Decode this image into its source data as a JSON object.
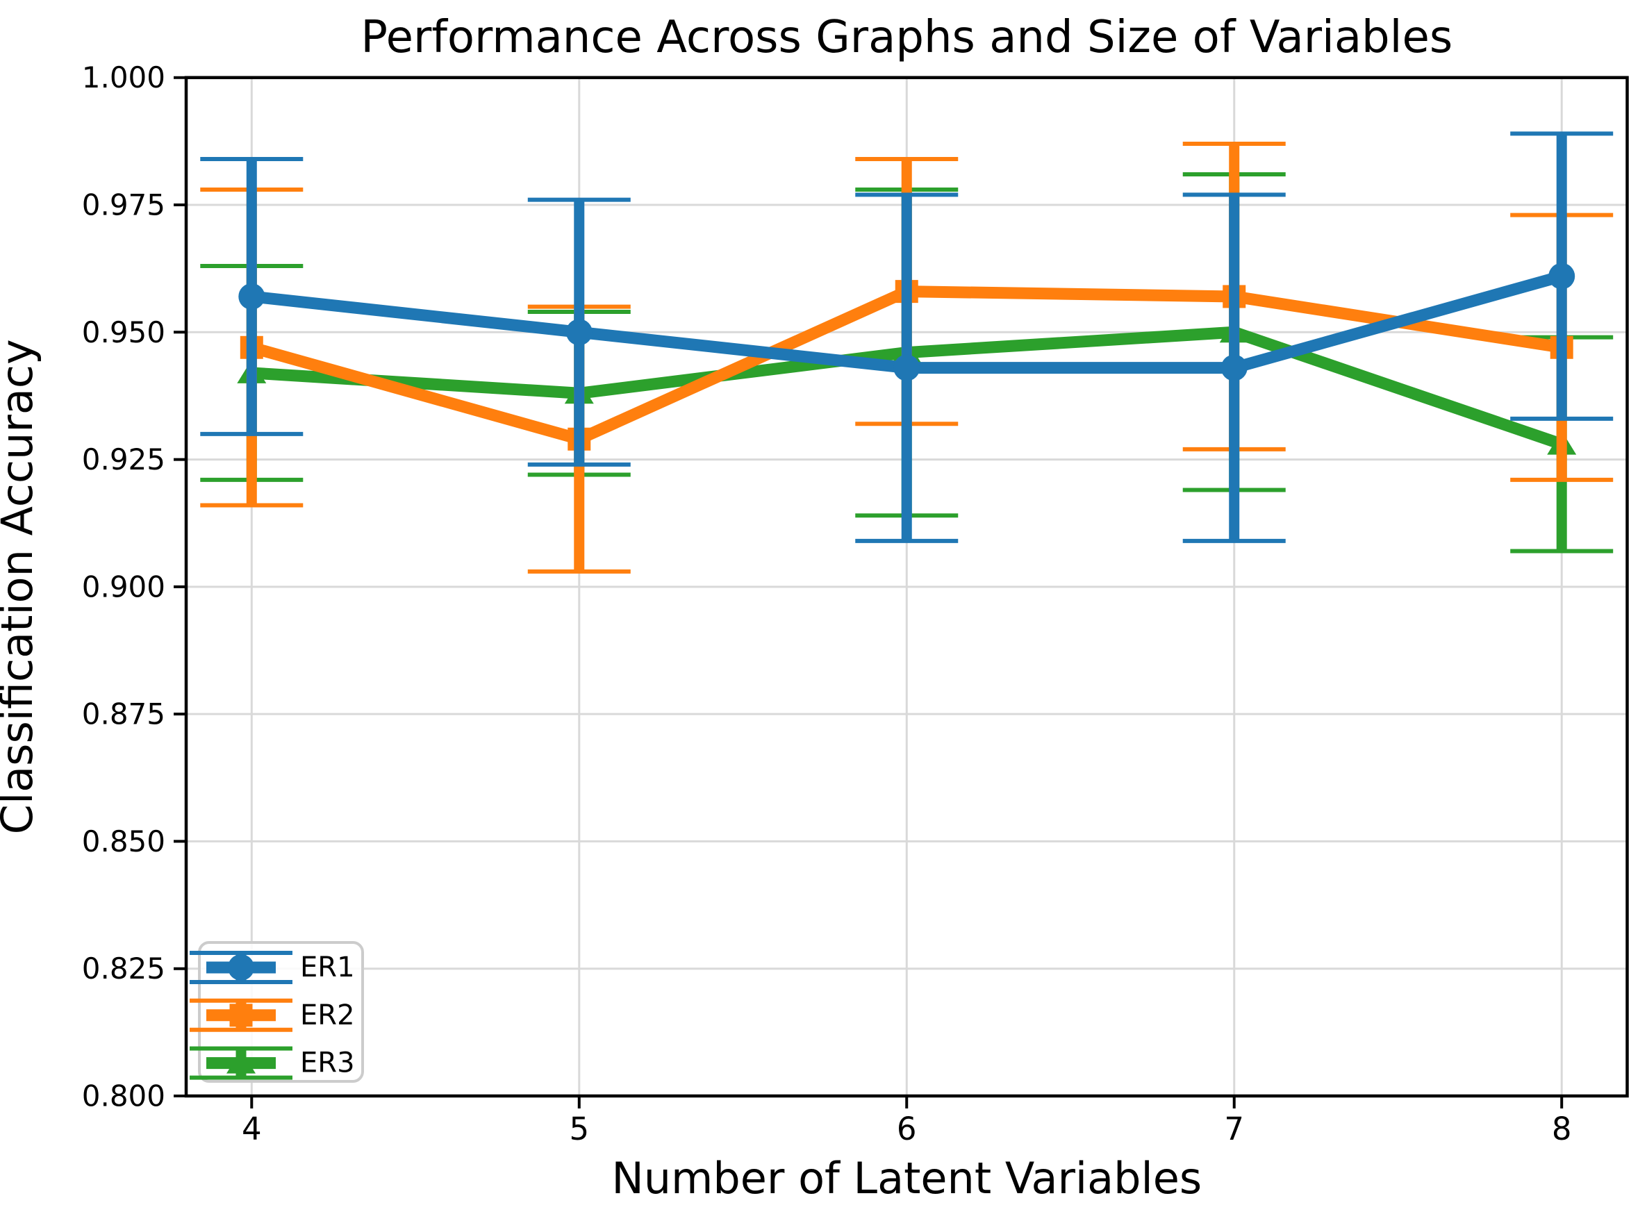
{
  "chart_data": {
    "type": "line",
    "title": "Performance Across Graphs and Size of Variables",
    "xlabel": "Number of Latent Variables",
    "ylabel": "Classification Accuracy",
    "x": [
      4,
      5,
      6,
      7,
      8
    ],
    "xticks": [
      4,
      5,
      6,
      7,
      8
    ],
    "yticks": [
      0.8,
      0.825,
      0.85,
      0.875,
      0.9,
      0.925,
      0.95,
      0.975,
      1.0
    ],
    "xlim": [
      3.8,
      8.2
    ],
    "ylim": [
      0.8,
      1.0
    ],
    "grid": true,
    "legend_position": "lower-left",
    "series": [
      {
        "name": "ER1",
        "color": "#1f77b4",
        "marker": "circle",
        "values": [
          0.957,
          0.95,
          0.943,
          0.943,
          0.961
        ],
        "yerr": [
          0.027,
          0.026,
          0.034,
          0.034,
          0.028
        ]
      },
      {
        "name": "ER2",
        "color": "#ff7f0e",
        "marker": "square",
        "values": [
          0.947,
          0.929,
          0.958,
          0.957,
          0.947
        ],
        "yerr": [
          0.031,
          0.026,
          0.026,
          0.03,
          0.026
        ]
      },
      {
        "name": "ER3",
        "color": "#2ca02c",
        "marker": "triangle",
        "values": [
          0.942,
          0.938,
          0.946,
          0.95,
          0.928
        ],
        "yerr": [
          0.021,
          0.016,
          0.032,
          0.031,
          0.021
        ]
      }
    ],
    "style_colors": {
      "grid": "#d9d9d9",
      "spine": "#000000",
      "text": "#000000",
      "legend_border": "#cccccc",
      "background": "#ffffff"
    }
  }
}
